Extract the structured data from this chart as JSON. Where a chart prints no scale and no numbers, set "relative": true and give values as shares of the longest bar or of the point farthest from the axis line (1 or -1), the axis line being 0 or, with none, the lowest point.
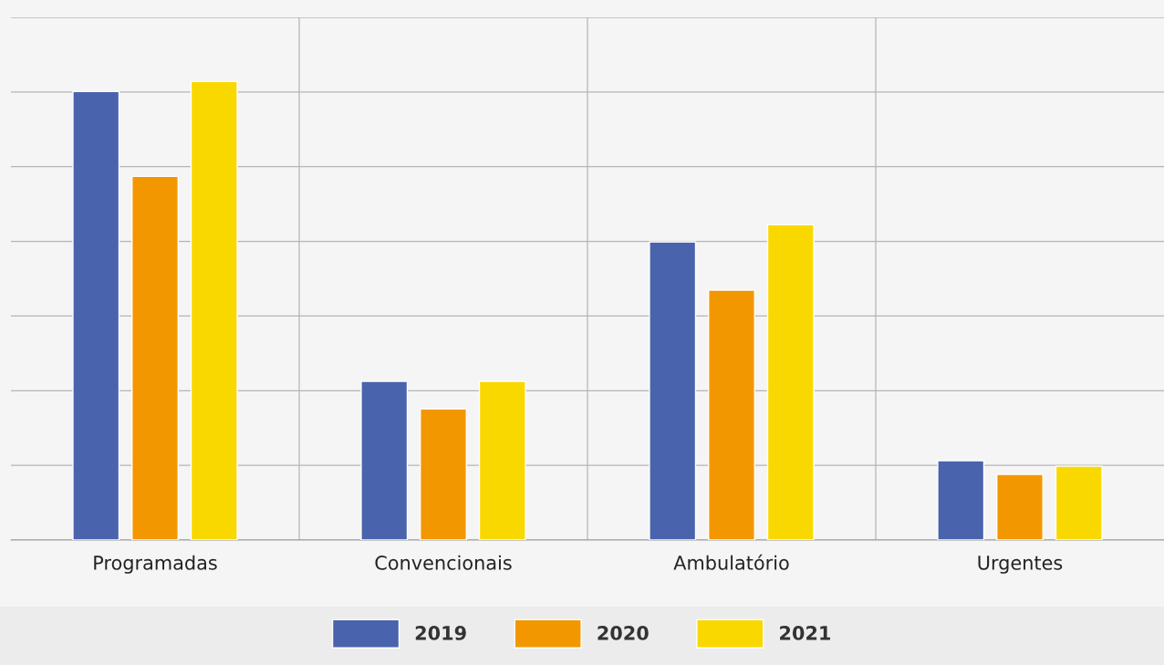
{
  "chart_data": {
    "type": "bar",
    "relative": true,
    "categories": [
      "Programadas",
      "Convencionais",
      "Ambulatório",
      "Urgentes"
    ],
    "series": [
      {
        "name": "2019",
        "color": "#4a63ad",
        "values": [
          0.978,
          0.346,
          0.65,
          0.173
        ]
      },
      {
        "name": "2020",
        "color": "#f39700",
        "values": [
          0.793,
          0.286,
          0.545,
          0.143
        ]
      },
      {
        "name": "2021",
        "color": "#f9d800",
        "values": [
          1,
          0.346,
          0.688,
          0.161
        ]
      }
    ],
    "grid": true,
    "legend": "bottom"
  }
}
